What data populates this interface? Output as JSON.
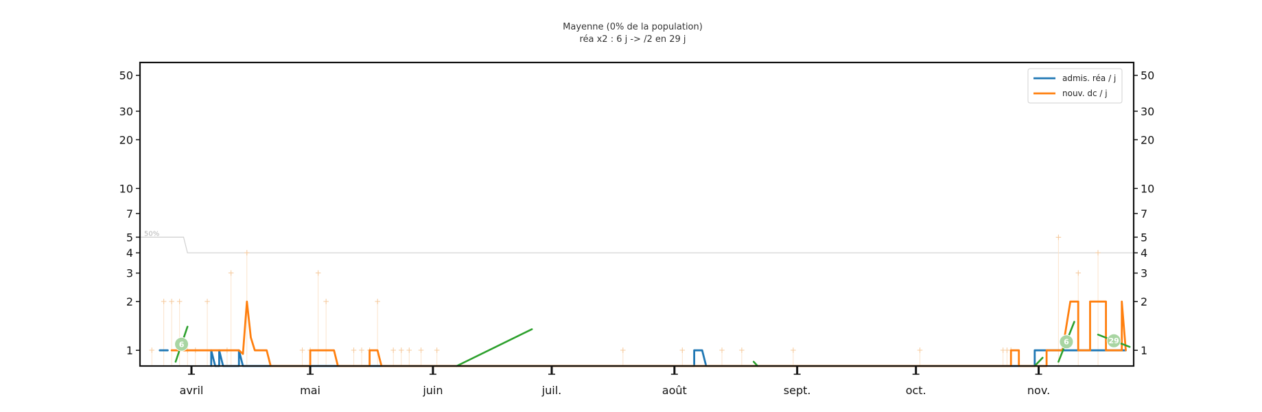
{
  "chart_data": {
    "type": "line",
    "title": "Mayenne (0% de la population)",
    "subtitle": "réa x2 : 6 j -> /2 en 29 j",
    "y_scale": "log",
    "ylim": [
      0.8,
      60
    ],
    "y_ticks": [
      "1",
      "2",
      "3",
      "4",
      "5",
      "7",
      "10",
      "20",
      "30",
      "50"
    ],
    "y_tick_values": [
      1,
      2,
      3,
      4,
      5,
      7,
      10,
      20,
      30,
      50
    ],
    "xlim": [
      "2020-03-19",
      "2020-11-25"
    ],
    "x_ticks": [
      "avril",
      "mai",
      "juin",
      "juil.",
      "août",
      "sept.",
      "oct.",
      "nov."
    ],
    "x_tick_dates": [
      "2020-04-01",
      "2020-05-01",
      "2020-06-01",
      "2020-07-01",
      "2020-08-01",
      "2020-09-01",
      "2020-10-01",
      "2020-11-01"
    ],
    "legend_position": "top-right",
    "grid": false,
    "series": [
      {
        "name": "admis. réa / j",
        "color": "#1f77b4",
        "points": [
          [
            "2020-03-24",
            1
          ],
          [
            "2020-03-26",
            1
          ],
          [
            "2020-03-28",
            null
          ],
          [
            "2020-04-06",
            0.8
          ],
          [
            "2020-04-06",
            1
          ],
          [
            "2020-04-07",
            0.8
          ],
          [
            "2020-04-08",
            0.8
          ],
          [
            "2020-04-08",
            1
          ],
          [
            "2020-04-09",
            0.8
          ],
          [
            "2020-04-13",
            0.8
          ],
          [
            "2020-04-13",
            1
          ],
          [
            "2020-04-14",
            0.8
          ],
          [
            "2020-08-06",
            0.8
          ],
          [
            "2020-08-06",
            1
          ],
          [
            "2020-08-08",
            1
          ],
          [
            "2020-08-09",
            0.8
          ],
          [
            "2020-10-31",
            0.8
          ],
          [
            "2020-10-31",
            1
          ],
          [
            "2020-11-06",
            1
          ],
          [
            "2020-11-13",
            1
          ],
          [
            "2020-11-21",
            1
          ],
          [
            "2020-11-23",
            1
          ]
        ]
      },
      {
        "name": "nouv. dc / j",
        "color": "#ff7f0e",
        "points": [
          [
            "2020-03-27",
            1
          ],
          [
            "2020-04-13",
            1
          ],
          [
            "2020-04-14",
            0.95
          ],
          [
            "2020-04-15",
            2
          ],
          [
            "2020-04-16",
            1.2
          ],
          [
            "2020-04-17",
            1
          ],
          [
            "2020-04-20",
            1
          ],
          [
            "2020-04-21",
            0.8
          ],
          [
            "2020-05-01",
            0.8
          ],
          [
            "2020-05-01",
            1
          ],
          [
            "2020-05-07",
            1
          ],
          [
            "2020-05-08",
            0.8
          ],
          [
            "2020-05-16",
            0.8
          ],
          [
            "2020-05-16",
            1
          ],
          [
            "2020-05-18",
            1
          ],
          [
            "2020-05-19",
            0.8
          ],
          [
            "2020-10-25",
            0.8
          ],
          [
            "2020-10-25",
            1
          ],
          [
            "2020-10-27",
            1
          ],
          [
            "2020-10-27",
            0.8
          ],
          [
            "2020-11-03",
            0.8
          ],
          [
            "2020-11-03",
            1
          ],
          [
            "2020-11-07",
            1
          ],
          [
            "2020-11-09",
            2
          ],
          [
            "2020-11-11",
            2
          ],
          [
            "2020-11-11",
            1
          ],
          [
            "2020-11-14",
            1
          ],
          [
            "2020-11-14",
            2
          ],
          [
            "2020-11-18",
            2
          ],
          [
            "2020-11-18",
            1
          ],
          [
            "2020-11-22",
            1
          ],
          [
            "2020-11-22",
            2
          ],
          [
            "2020-11-23",
            1
          ]
        ]
      }
    ],
    "deaths_daily_markers": [
      [
        "2020-03-22",
        1
      ],
      [
        "2020-03-25",
        2
      ],
      [
        "2020-03-27",
        2
      ],
      [
        "2020-03-29",
        2
      ],
      [
        "2020-03-31",
        1
      ],
      [
        "2020-04-02",
        1
      ],
      [
        "2020-04-05",
        2
      ],
      [
        "2020-04-10",
        1
      ],
      [
        "2020-04-11",
        3
      ],
      [
        "2020-04-15",
        4
      ],
      [
        "2020-04-29",
        1
      ],
      [
        "2020-05-01",
        1
      ],
      [
        "2020-05-03",
        3
      ],
      [
        "2020-05-05",
        2
      ],
      [
        "2020-05-12",
        1
      ],
      [
        "2020-05-14",
        1
      ],
      [
        "2020-05-16",
        1
      ],
      [
        "2020-05-18",
        2
      ],
      [
        "2020-05-22",
        1
      ],
      [
        "2020-05-24",
        1
      ],
      [
        "2020-05-26",
        1
      ],
      [
        "2020-05-29",
        1
      ],
      [
        "2020-06-02",
        1
      ],
      [
        "2020-07-19",
        1
      ],
      [
        "2020-08-03",
        1
      ],
      [
        "2020-08-13",
        1
      ],
      [
        "2020-08-18",
        1
      ],
      [
        "2020-08-31",
        1
      ],
      [
        "2020-10-02",
        1
      ],
      [
        "2020-10-23",
        1
      ],
      [
        "2020-10-24",
        1
      ],
      [
        "2020-10-25",
        1
      ],
      [
        "2020-11-06",
        5
      ],
      [
        "2020-11-11",
        3
      ],
      [
        "2020-11-16",
        4
      ]
    ],
    "threshold": {
      "label": "50%",
      "points": [
        [
          "2020-03-19",
          5
        ],
        [
          "2020-03-30",
          5
        ],
        [
          "2020-03-31",
          4
        ],
        [
          "2020-11-25",
          4
        ]
      ]
    },
    "trend_lines": [
      {
        "color": "#2ca02c",
        "from": [
          "2020-03-28",
          0.85
        ],
        "to": [
          "2020-03-31",
          1.4
        ],
        "label": "6"
      },
      {
        "color": "#2ca02c",
        "from": [
          "2020-06-07",
          0.8
        ],
        "to": [
          "2020-06-26",
          1.35
        ],
        "label": ""
      },
      {
        "color": "#2ca02c",
        "from": [
          "2020-08-21",
          0.85
        ],
        "to": [
          "2020-08-22",
          0.8
        ],
        "label": ""
      },
      {
        "color": "#2ca02c",
        "from": [
          "2020-10-31",
          0.8
        ],
        "to": [
          "2020-11-02",
          0.9
        ],
        "label": ""
      },
      {
        "color": "#2ca02c",
        "from": [
          "2020-11-06",
          0.85
        ],
        "to": [
          "2020-11-10",
          1.5
        ],
        "label": "6"
      },
      {
        "color": "#2ca02c",
        "from": [
          "2020-11-16",
          1.25
        ],
        "to": [
          "2020-11-24",
          1.05
        ],
        "label": "29"
      }
    ]
  }
}
